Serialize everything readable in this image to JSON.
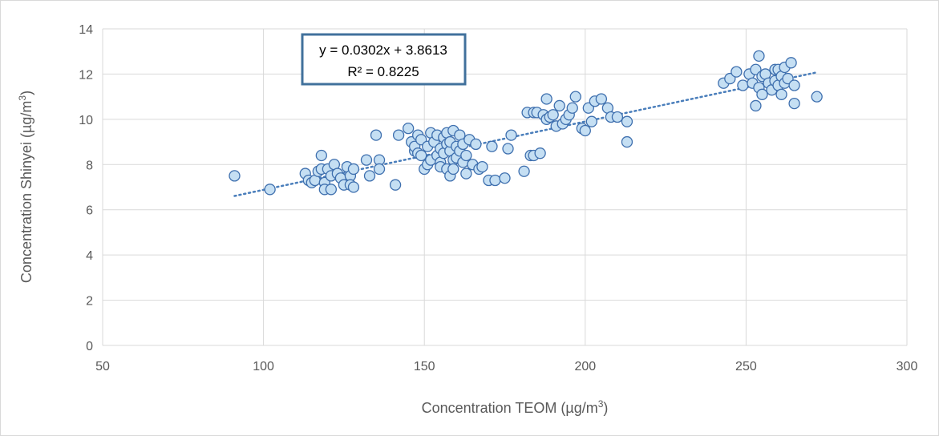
{
  "chart_data": {
    "type": "scatter",
    "title": "",
    "xlabel": "Concentration TEOM (µg/m",
    "xlabel_sup": "3",
    "xlabel_end": ")",
    "ylabel": "Concentration Shinyei (µg/m",
    "ylabel_sup": "3",
    "ylabel_end": ")",
    "xlim": [
      50,
      300
    ],
    "ylim": [
      0,
      14
    ],
    "x_ticks": [
      50,
      100,
      150,
      200,
      250,
      300
    ],
    "y_ticks": [
      0,
      2,
      4,
      6,
      8,
      10,
      12,
      14
    ],
    "grid": true,
    "legend": "none",
    "trendline": {
      "type": "linear",
      "slope": 0.0302,
      "intercept": 3.8613,
      "x_range": [
        91,
        272
      ],
      "equation_label": "y = 0.0302x + 3.8613",
      "r2_label": "R² = 0.8225"
    },
    "colors": {
      "marker_fill": "#c5dff3",
      "marker_stroke": "#3e6fae",
      "trendline": "#4a7ebb",
      "grid": "#d9d9d9",
      "eq_box_border": "#41719c"
    },
    "x": [
      91,
      102,
      113,
      114,
      115,
      116,
      117,
      118,
      118,
      119,
      119,
      120,
      121,
      121,
      122,
      123,
      124,
      125,
      126,
      127,
      127,
      128,
      128,
      132,
      133,
      135,
      136,
      136,
      141,
      142,
      145,
      146,
      147,
      147,
      148,
      148,
      149,
      149,
      150,
      151,
      151,
      152,
      152,
      153,
      154,
      154,
      155,
      155,
      155,
      156,
      156,
      157,
      157,
      157,
      158,
      158,
      158,
      159,
      159,
      159,
      160,
      160,
      161,
      161,
      162,
      162,
      163,
      163,
      164,
      165,
      166,
      167,
      168,
      170,
      171,
      172,
      175,
      176,
      177,
      181,
      182,
      183,
      184,
      184,
      185,
      186,
      187,
      188,
      188,
      189,
      190,
      191,
      192,
      193,
      194,
      195,
      196,
      197,
      199,
      200,
      201,
      202,
      203,
      205,
      207,
      208,
      210,
      213,
      213,
      243,
      245,
      247,
      249,
      251,
      252,
      253,
      253,
      254,
      254,
      255,
      255,
      256,
      257,
      258,
      259,
      259,
      260,
      260,
      261,
      261,
      262,
      262,
      263,
      264,
      265,
      265,
      272
    ],
    "y": [
      7.5,
      6.9,
      7.6,
      7.3,
      7.2,
      7.3,
      7.7,
      8.4,
      7.8,
      7.2,
      6.9,
      7.8,
      7.5,
      6.9,
      8.0,
      7.6,
      7.4,
      7.1,
      7.9,
      7.5,
      7.1,
      7.8,
      7.0,
      8.2,
      7.5,
      9.3,
      8.2,
      7.8,
      7.1,
      9.3,
      9.6,
      9.0,
      8.6,
      8.8,
      8.5,
      9.3,
      9.1,
      8.4,
      7.8,
      8.0,
      8.8,
      9.4,
      8.2,
      9.0,
      9.3,
      8.4,
      8.1,
      7.9,
      8.7,
      8.5,
      9.2,
      7.8,
      8.9,
      9.4,
      7.5,
      8.6,
      9.0,
      9.5,
      8.2,
      7.8,
      8.8,
      8.3,
      9.3,
      8.6,
      8.9,
      8.1,
      8.4,
      7.6,
      9.1,
      8.0,
      8.9,
      7.8,
      7.9,
      7.3,
      8.8,
      7.3,
      7.4,
      8.7,
      9.3,
      7.7,
      10.3,
      8.4,
      10.3,
      8.4,
      10.3,
      8.5,
      10.2,
      10.0,
      10.9,
      10.1,
      10.2,
      9.7,
      10.6,
      9.8,
      10.0,
      10.2,
      10.5,
      11.0,
      9.6,
      9.5,
      10.5,
      9.9,
      10.8,
      10.9,
      10.5,
      10.1,
      10.1,
      9.9,
      9.0,
      11.6,
      11.8,
      12.1,
      11.5,
      12.0,
      11.6,
      12.2,
      10.6,
      11.4,
      12.8,
      11.9,
      11.1,
      12.0,
      11.6,
      11.3,
      12.2,
      11.7,
      11.5,
      12.2,
      11.1,
      11.9,
      12.3,
      11.6,
      11.8,
      12.5,
      11.5,
      10.7,
      11.0
    ]
  }
}
